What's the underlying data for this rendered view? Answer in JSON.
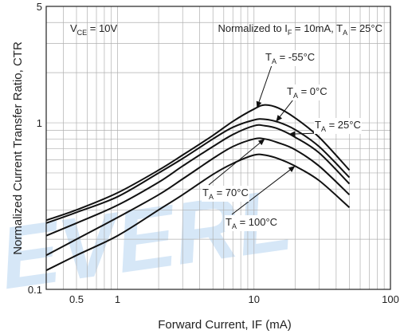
{
  "chart_data": {
    "type": "line",
    "xlabel": "Forward Current, IF (mA)",
    "ylabel": "Normalized Current Transfer Ratio, CTR",
    "x_scale": "log",
    "y_scale": "log",
    "xlim": [
      0.3,
      100
    ],
    "ylim": [
      0.1,
      5
    ],
    "x_ticks": [
      0.5,
      1,
      10,
      100
    ],
    "x_tick_labels": [
      "0.5",
      "1",
      "10",
      "100"
    ],
    "y_ticks": [
      0.1,
      1,
      5
    ],
    "y_tick_labels": [
      "0.1",
      "1",
      "5"
    ],
    "grid": true,
    "conditions": {
      "vce": {
        "main": "V",
        "sub": "CE",
        "rest": " = 10V"
      },
      "normalized": {
        "pre": "Normalized to I",
        "sub1": "F",
        "mid": " = 10mA, T",
        "sub2": "A",
        "post": " = 25°C"
      }
    },
    "series": [
      {
        "name": "TA = -55°C",
        "x": [
          0.3,
          0.5,
          1,
          2,
          3,
          5,
          7,
          10,
          12,
          15,
          20,
          30,
          50
        ],
        "y": [
          0.26,
          0.3,
          0.38,
          0.52,
          0.64,
          0.84,
          1.02,
          1.21,
          1.28,
          1.23,
          1.07,
          0.82,
          0.52
        ]
      },
      {
        "name": "TA = 0°C",
        "x": [
          0.3,
          0.5,
          1,
          2,
          3,
          5,
          7,
          10,
          12,
          15,
          20,
          30,
          50
        ],
        "y": [
          0.25,
          0.29,
          0.36,
          0.5,
          0.61,
          0.8,
          0.94,
          1.04,
          1.05,
          1.01,
          0.91,
          0.72,
          0.47
        ]
      },
      {
        "name": "TA = 25°C",
        "x": [
          0.3,
          0.5,
          1,
          2,
          3,
          5,
          7,
          10,
          12,
          15,
          20,
          30,
          50
        ],
        "y": [
          0.21,
          0.25,
          0.32,
          0.44,
          0.55,
          0.72,
          0.85,
          0.96,
          0.96,
          0.92,
          0.82,
          0.66,
          0.43
        ]
      },
      {
        "name": "TA = 70°C",
        "x": [
          0.3,
          0.5,
          1,
          2,
          3,
          5,
          7,
          10,
          12,
          15,
          20,
          30,
          50
        ],
        "y": [
          0.16,
          0.2,
          0.27,
          0.37,
          0.46,
          0.61,
          0.72,
          0.8,
          0.8,
          0.76,
          0.69,
          0.55,
          0.37
        ]
      },
      {
        "name": "TA = 100°C",
        "x": [
          0.3,
          0.5,
          1,
          2,
          3,
          5,
          7,
          10,
          12,
          15,
          20,
          30,
          50
        ],
        "y": [
          0.13,
          0.16,
          0.21,
          0.3,
          0.37,
          0.49,
          0.57,
          0.64,
          0.64,
          0.61,
          0.55,
          0.45,
          0.31
        ]
      }
    ],
    "annotations": [
      {
        "main": "T",
        "sub": "A",
        "rest": " = -55°C",
        "series": 0,
        "arrow_to_x": 10.5
      },
      {
        "main": "T",
        "sub": "A",
        "rest": " = 0°C",
        "series": 1,
        "arrow_to_x": 14.5
      },
      {
        "main": "T",
        "sub": "A",
        "rest": " = 25°C",
        "series": 2,
        "arrow_to_x": 18
      },
      {
        "main": "T",
        "sub": "A",
        "rest": " = 70°C",
        "series": 3,
        "arrow_to_x": 12
      },
      {
        "main": "T",
        "sub": "A",
        "rest": " = 100°C",
        "series": 4,
        "arrow_to_x": 20
      }
    ]
  },
  "watermark": {
    "text": "EVERL",
    "color": "#cfe3f6"
  },
  "colors": {
    "line": "#111111",
    "grid": "#b0b0b0",
    "frame": "#222222"
  }
}
